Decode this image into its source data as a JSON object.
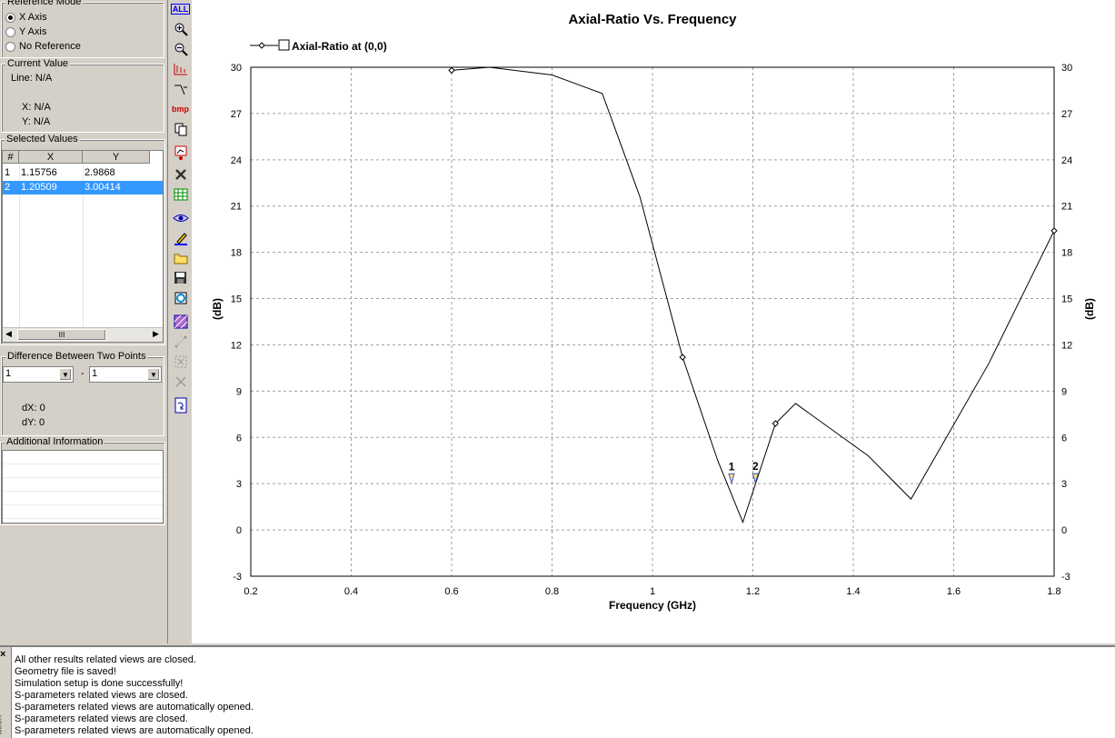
{
  "reference_mode": {
    "title": "Reference Mode",
    "options": [
      "X Axis",
      "Y Axis",
      "No Reference"
    ],
    "selected": "X Axis"
  },
  "current_value": {
    "title": "Current Value",
    "line": "Line: N/A",
    "x": "X: N/A",
    "y": "Y: N/A"
  },
  "selected_values": {
    "title": "Selected Values",
    "columns": [
      "#",
      "X",
      "Y"
    ],
    "rows": [
      {
        "n": "1",
        "x": "1.15756",
        "y": "2.9868"
      },
      {
        "n": "2",
        "x": "1.20509",
        "y": "3.00414"
      }
    ],
    "selected_row": 2,
    "scroll_thumb_label": "III"
  },
  "difference": {
    "title": "Difference Between Two Points",
    "a": "1",
    "b": "1",
    "separator": "-",
    "dx": "dX: 0",
    "dy": "dY: 0"
  },
  "additional_info": {
    "title": "Additional Information"
  },
  "toolbar": {
    "all_label": "ALL",
    "bmp_label": "bmp",
    "icons": [
      "all-icon",
      "zoom-in-icon",
      "zoom-out-icon",
      "marker-icon",
      "axis-icon",
      "bmp-icon",
      "copy-icon",
      "edit-curve-icon",
      "tools-icon",
      "table-icon",
      "eye-icon",
      "pen-icon",
      "open-folder-icon",
      "save-icon",
      "export-icon",
      "pattern-icon",
      "link-icon",
      "select-icon",
      "delete-icon",
      "refresh-icon"
    ]
  },
  "chart_data": {
    "type": "line",
    "title": "Axial-Ratio Vs. Frequency",
    "xlabel": "Frequency (GHz)",
    "ylabel": "(dB)",
    "ylabel_right": "(dB)",
    "xlim": [
      0.2,
      1.8
    ],
    "ylim": [
      -3,
      30
    ],
    "xticks": [
      "0.2",
      "0.4",
      "0.6",
      "0.8",
      "1",
      "1.2",
      "1.4",
      "1.6",
      "1.8"
    ],
    "yticks": [
      "-3",
      "0",
      "3",
      "6",
      "9",
      "12",
      "15",
      "18",
      "21",
      "24",
      "27",
      "30"
    ],
    "grid": true,
    "legend_placement": "top-left",
    "series": [
      {
        "name": "Axial-Ratio at (0,0)",
        "color": "#000000",
        "x": [
          0.6,
          0.675,
          0.8,
          0.9,
          0.975,
          1.06,
          1.13,
          1.18,
          1.245,
          1.285,
          1.43,
          1.515,
          1.67,
          1.8
        ],
        "y": [
          29.8,
          30.0,
          29.5,
          28.3,
          21.6,
          11.2,
          4.5,
          0.5,
          6.9,
          8.2,
          4.8,
          2.0,
          10.8,
          19.4
        ],
        "marker_x": [
          0.6,
          1.06,
          1.245,
          1.8
        ],
        "marker_y": [
          29.8,
          11.2,
          6.9,
          19.4
        ]
      }
    ],
    "annotations": [
      {
        "label": "1",
        "x": 1.15756,
        "y": 2.9868
      },
      {
        "label": "2",
        "x": 1.20509,
        "y": 3.00414
      }
    ]
  },
  "console": {
    "tab_label": "ation",
    "messages": [
      "All other results related views are closed.",
      "Geometry file is saved!",
      "Simulation setup is done successfully!",
      "S-parameters related views are closed.",
      "S-parameters related views are automatically opened.",
      "S-parameters related views are closed.",
      "S-parameters related views are automatically opened."
    ]
  }
}
